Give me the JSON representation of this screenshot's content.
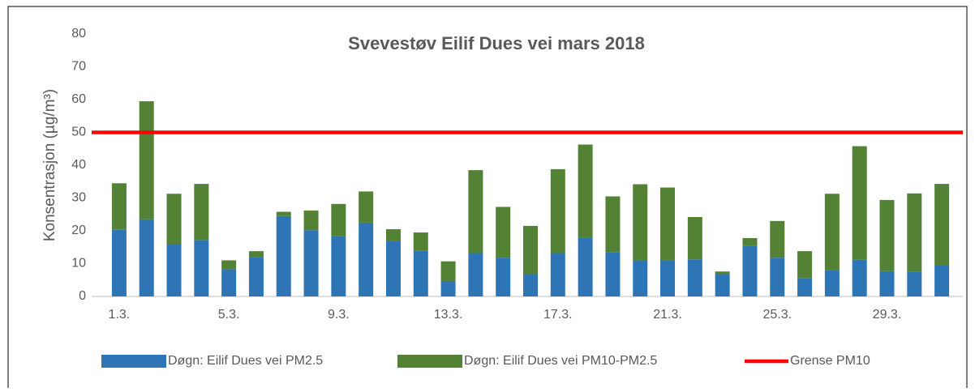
{
  "chart_data": {
    "type": "bar",
    "stacked": true,
    "title": "Svevestøv Eilif Dues vei mars 2018",
    "y_label": "Konsentrasjon (µg/m³)",
    "categories": [
      "1.3.",
      null,
      null,
      null,
      "5.3.",
      null,
      null,
      null,
      "9.3.",
      null,
      null,
      null,
      "13.3.",
      null,
      null,
      null,
      "17.3.",
      null,
      null,
      null,
      "21.3.",
      null,
      null,
      null,
      "25.3.",
      null,
      null,
      null,
      "29.3.",
      null,
      null
    ],
    "series": [
      {
        "name": "Døgn: Eilif Dues vei PM2.5",
        "color": "#2e75b6",
        "values": [
          20.3,
          23.5,
          15.8,
          17.2,
          8.3,
          12,
          24.5,
          20.2,
          18.3,
          22.5,
          16.8,
          14,
          4.7,
          13.2,
          11.8,
          6.8,
          13.2,
          18,
          13.5,
          11,
          11,
          11.3,
          6.8,
          15.5,
          11.8,
          5.6,
          8,
          11.2,
          7.7,
          7.6,
          9.5
        ]
      },
      {
        "name": "Døgn: Eilif Dues vei PM10-PM2.5",
        "color": "#548235",
        "values": [
          14.2,
          36,
          15.5,
          17.1,
          2.7,
          1.8,
          1.3,
          6,
          9.9,
          9.5,
          3.7,
          5.5,
          6,
          25.3,
          15.5,
          14.7,
          25.6,
          28.3,
          17,
          23.2,
          22.2,
          12.9,
          0.8,
          2.3,
          11.2,
          8.2,
          23.3,
          34.6,
          21.7,
          23.8,
          24.8
        ]
      },
      {
        "name": "Grense PM10",
        "color": "#ff0000",
        "type": "line",
        "values": [
          50,
          50,
          50,
          50,
          50,
          50,
          50,
          50,
          50,
          50,
          50,
          50,
          50,
          50,
          50,
          50,
          50,
          50,
          50,
          50,
          50,
          50,
          50,
          50,
          50,
          50,
          50,
          50,
          50,
          50,
          50
        ]
      }
    ],
    "ylim": [
      0,
      80
    ],
    "yticks": [
      0,
      10,
      20,
      30,
      40,
      50,
      60,
      70,
      80
    ],
    "grid": false,
    "legend": "bottom"
  }
}
